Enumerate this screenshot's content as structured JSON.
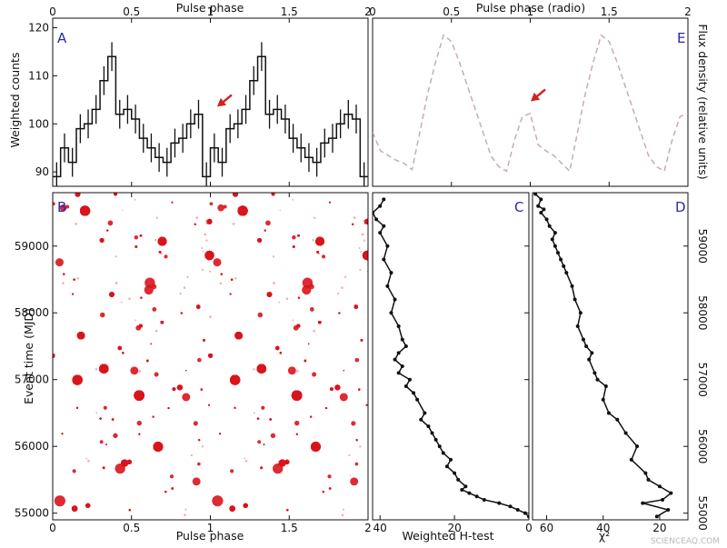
{
  "colors": {
    "profile": "#111111",
    "radio": "#c9a9b8",
    "arrow": "#d42020",
    "dots": "#d9141c",
    "letters": "#2a2aa8"
  },
  "watermark": "SCIENCEAQ.COM",
  "chart_data": [
    {
      "panel": "A",
      "type": "line",
      "style": "step-with-error-bars",
      "xlabel": "Pulse phase",
      "ylabel": "Weighted counts",
      "xlim": [
        0,
        2
      ],
      "ylim": [
        87,
        122
      ],
      "xticks": [
        0,
        0.5,
        1,
        1.5,
        2
      ],
      "xtick_labels": [
        "0",
        "0.5",
        "1",
        "1.5",
        "2"
      ],
      "yticks": [
        90,
        100,
        110,
        120
      ],
      "ytick_labels": [
        "90",
        "100",
        "110",
        "120"
      ],
      "x": [
        0.025,
        0.075,
        0.125,
        0.175,
        0.225,
        0.275,
        0.325,
        0.375,
        0.425,
        0.475,
        0.525,
        0.575,
        0.625,
        0.675,
        0.725,
        0.775,
        0.825,
        0.875,
        0.925,
        0.975,
        1.025,
        1.075,
        1.125,
        1.175,
        1.225,
        1.275,
        1.325,
        1.375,
        1.425,
        1.475,
        1.525,
        1.575,
        1.625,
        1.675,
        1.725,
        1.775,
        1.825,
        1.875,
        1.925,
        1.975
      ],
      "values": [
        89,
        95,
        92,
        99,
        100,
        103,
        109,
        114,
        102,
        103,
        101,
        97,
        95,
        93,
        92,
        96,
        97,
        100,
        102,
        89,
        95,
        92,
        99,
        100,
        103,
        109,
        114,
        102,
        103,
        101,
        97,
        95,
        93,
        92,
        96,
        97,
        100,
        102,
        101,
        89
      ],
      "errors": [
        3,
        3,
        3,
        3,
        3,
        3,
        3,
        3,
        3,
        3,
        3,
        3,
        3,
        3,
        3,
        3,
        3,
        3,
        3,
        3,
        3,
        3,
        3,
        3,
        3,
        3,
        3,
        3,
        3,
        3,
        3,
        3,
        3,
        3,
        3,
        3,
        3,
        3,
        3,
        3
      ],
      "arrow_at": [
        1.02,
        103
      ]
    },
    {
      "panel": "E",
      "type": "line",
      "style": "dashed",
      "xlabel": "Pulse phase (radio)",
      "ylabel": "Flux density (relative units)",
      "xlim": [
        0,
        2
      ],
      "ylim": [
        0,
        1
      ],
      "xticks": [
        0,
        0.5,
        1,
        1.5,
        2
      ],
      "xtick_labels": [
        "0",
        "0.5",
        "1",
        "1.5",
        "2"
      ],
      "x": [
        0,
        0.05,
        0.1,
        0.15,
        0.2,
        0.25,
        0.3,
        0.35,
        0.4,
        0.45,
        0.5,
        0.55,
        0.6,
        0.65,
        0.7,
        0.75,
        0.8,
        0.85,
        0.9,
        0.95,
        1,
        1.05,
        1.1,
        1.15,
        1.2,
        1.25,
        1.3,
        1.35,
        1.4,
        1.45,
        1.5,
        1.55,
        1.6,
        1.65,
        1.7,
        1.75,
        1.8,
        1.85,
        1.9,
        1.95,
        2
      ],
      "values": [
        0.3,
        0.18,
        0.15,
        0.12,
        0.1,
        0.06,
        0.3,
        0.55,
        0.75,
        0.92,
        0.88,
        0.75,
        0.6,
        0.45,
        0.3,
        0.15,
        0.08,
        0.05,
        0.25,
        0.4,
        0.42,
        0.22,
        0.18,
        0.15,
        0.1,
        0.05,
        0.3,
        0.55,
        0.75,
        0.92,
        0.88,
        0.75,
        0.6,
        0.45,
        0.3,
        0.15,
        0.08,
        0.05,
        0.25,
        0.4,
        0.42
      ],
      "arrow_at": [
        0.98,
        0.48
      ]
    },
    {
      "panel": "B",
      "type": "scatter",
      "xlabel": "Pulse phase",
      "ylabel": "Event time (MJD)",
      "xlim": [
        0,
        2
      ],
      "ylim": [
        54900,
        59800
      ],
      "xticks": [
        0,
        0.5,
        1,
        1.5,
        2
      ],
      "xtick_labels": [
        "0",
        "0.5",
        "1",
        "1.5",
        "2"
      ],
      "yticks": [
        55000,
        56000,
        57000,
        58000,
        59000
      ],
      "ytick_labels": [
        "55000",
        "56000",
        "57000",
        "58000",
        "59000"
      ]
    },
    {
      "panel": "C",
      "type": "line",
      "xlabel": "Weighted H-test",
      "xlim": [
        42,
        0
      ],
      "ylim": [
        54900,
        59800
      ],
      "xticks": [
        40,
        20,
        0
      ],
      "xtick_labels": [
        "40",
        "20",
        "0"
      ],
      "x": [
        0,
        1,
        3,
        5,
        8,
        12,
        14,
        16,
        18,
        17,
        19,
        20,
        22,
        21,
        23,
        24,
        25,
        26,
        27,
        29,
        28,
        30,
        31,
        33,
        32,
        35,
        34,
        36,
        35,
        33,
        34,
        35,
        37,
        36,
        38,
        37,
        39,
        38,
        40,
        39,
        41,
        42,
        40,
        39
      ],
      "y": [
        54950,
        55000,
        55050,
        55100,
        55150,
        55200,
        55250,
        55300,
        55350,
        55400,
        55500,
        55600,
        55700,
        55800,
        55900,
        56000,
        56100,
        56200,
        56300,
        56400,
        56500,
        56700,
        56800,
        56900,
        57000,
        57100,
        57200,
        57300,
        57400,
        57500,
        57600,
        57800,
        58000,
        58200,
        58400,
        58600,
        58800,
        59000,
        59200,
        59300,
        59400,
        59500,
        59600,
        59700
      ]
    },
    {
      "panel": "D",
      "type": "line",
      "xlabel": "χ²",
      "xlim": [
        65,
        10
      ],
      "ylim": [
        54900,
        59800
      ],
      "xticks": [
        60,
        40,
        20
      ],
      "xtick_labels": [
        "60",
        "40",
        "20"
      ],
      "x": [
        21,
        17,
        26,
        19,
        16,
        20,
        24,
        25,
        30,
        28,
        32,
        35,
        38,
        40,
        39,
        42,
        43,
        45,
        44,
        46,
        47,
        49,
        48,
        50,
        51,
        53,
        54,
        55,
        56,
        57,
        58,
        57,
        59,
        60,
        62,
        61,
        63,
        62,
        64
      ],
      "y": [
        54950,
        55050,
        55150,
        55200,
        55300,
        55400,
        55500,
        55600,
        55800,
        56000,
        56200,
        56400,
        56500,
        56700,
        56900,
        57000,
        57100,
        57300,
        57400,
        57500,
        57600,
        57800,
        58000,
        58200,
        58400,
        58600,
        58700,
        58800,
        58900,
        59000,
        59100,
        59200,
        59300,
        59400,
        59500,
        59550,
        59600,
        59700,
        59780
      ]
    }
  ]
}
